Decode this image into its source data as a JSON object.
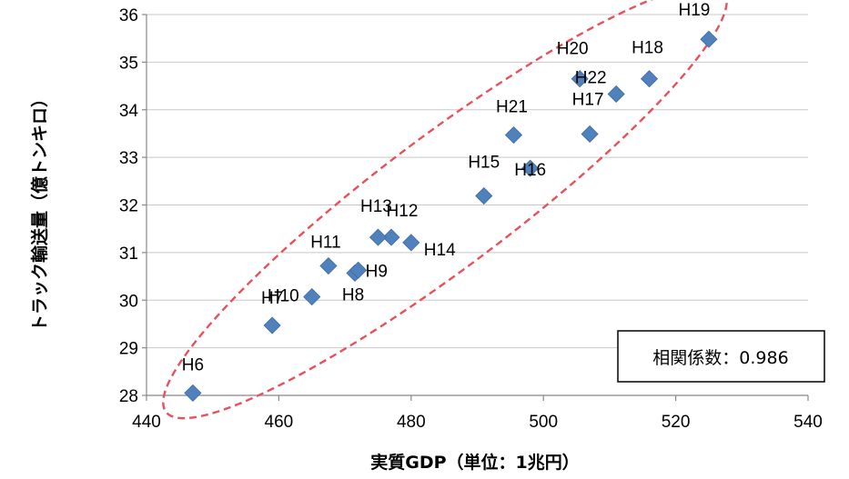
{
  "chart_data": {
    "type": "scatter",
    "xlabel": "実質GDP（単位：1兆円）",
    "ylabel": "トラック輸送量（億トンキロ）",
    "xlim": [
      440,
      540
    ],
    "ylim": [
      28,
      36
    ],
    "x_ticks": [
      "440",
      "460",
      "480",
      "500",
      "520",
      "540"
    ],
    "y_ticks": [
      "28",
      "29",
      "30",
      "31",
      "32",
      "33",
      "34",
      "35",
      "36"
    ],
    "grid": "horizontal",
    "marker_color": "#4F81BD",
    "ellipse_color": "#E8505B",
    "points": [
      {
        "label": "H6",
        "x": 447.0,
        "y": 28.05
      },
      {
        "label": "H7",
        "x": 459.0,
        "y": 29.47
      },
      {
        "label": "H8",
        "x": 471.5,
        "y": 30.57
      },
      {
        "label": "H9",
        "x": 472.0,
        "y": 30.63
      },
      {
        "label": "H10",
        "x": 465.0,
        "y": 30.07
      },
      {
        "label": "H11",
        "x": 467.5,
        "y": 30.72
      },
      {
        "label": "H12",
        "x": 477.0,
        "y": 31.32
      },
      {
        "label": "H13",
        "x": 475.0,
        "y": 31.32
      },
      {
        "label": "H14",
        "x": 480.0,
        "y": 31.21
      },
      {
        "label": "H15",
        "x": 491.0,
        "y": 32.19
      },
      {
        "label": "H16",
        "x": 498.0,
        "y": 32.77
      },
      {
        "label": "H17",
        "x": 507.0,
        "y": 33.49
      },
      {
        "label": "H18",
        "x": 516.0,
        "y": 34.65
      },
      {
        "label": "H19",
        "x": 525.0,
        "y": 35.48
      },
      {
        "label": "H20",
        "x": 505.5,
        "y": 34.65
      },
      {
        "label": "H21",
        "x": 495.5,
        "y": 33.47
      },
      {
        "label": "H22",
        "x": 511.0,
        "y": 34.33
      }
    ],
    "annotation": "相関係数：0.986"
  }
}
